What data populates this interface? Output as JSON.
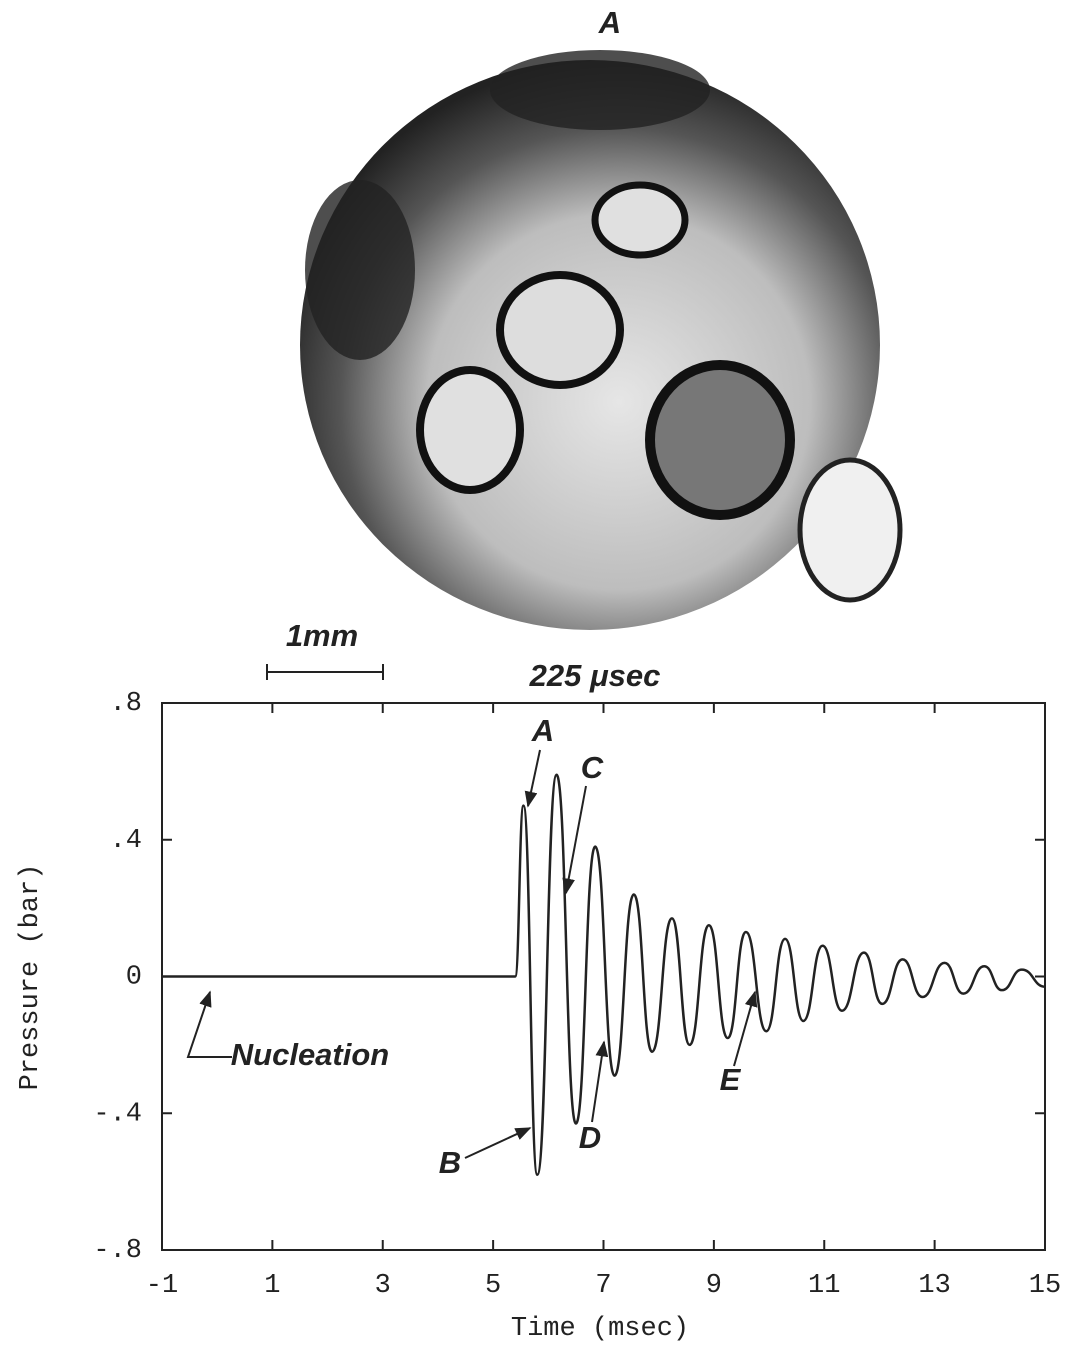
{
  "photo_label": "A",
  "scale_bar": "1mm",
  "time_label": "225 μsec",
  "chart_data": {
    "type": "line",
    "xlabel": "Time (msec)",
    "ylabel": "Pressure (bar)",
    "xlim": [
      -1,
      15
    ],
    "ylim": [
      -0.8,
      0.8
    ],
    "xticks": [
      -1,
      1,
      3,
      5,
      7,
      9,
      11,
      13,
      15
    ],
    "yticks": [
      {
        "value": -0.8,
        "label": "-.8"
      },
      {
        "value": -0.4,
        "label": "-.4"
      },
      0,
      {
        "value": 0.4,
        "label": ".4"
      },
      {
        "value": 0.8,
        "label": ".8"
      }
    ],
    "annotations": [
      "Nucleation",
      "A",
      "B",
      "C",
      "D",
      "E"
    ],
    "series": [
      {
        "color": "#222222",
        "x": [
          -1,
          5.4,
          5.55,
          5.8,
          6.15,
          6.5,
          6.85,
          7.2,
          7.55,
          7.88,
          8.24,
          8.56,
          8.91,
          9.25,
          9.58,
          9.95,
          10.29,
          10.62,
          10.97,
          11.32,
          11.72,
          12.05,
          12.42,
          12.78,
          13.18,
          13.52,
          13.9,
          14.22,
          14.58,
          15
        ],
        "values": [
          0,
          0,
          0.5,
          -0.58,
          0.59,
          -0.43,
          0.38,
          -0.29,
          0.24,
          -0.22,
          0.17,
          -0.2,
          0.15,
          -0.18,
          0.13,
          -0.16,
          0.11,
          -0.13,
          0.09,
          -0.1,
          0.07,
          -0.08,
          0.05,
          -0.06,
          0.04,
          -0.05,
          0.03,
          -0.04,
          0.02,
          -0.03
        ]
      }
    ]
  }
}
